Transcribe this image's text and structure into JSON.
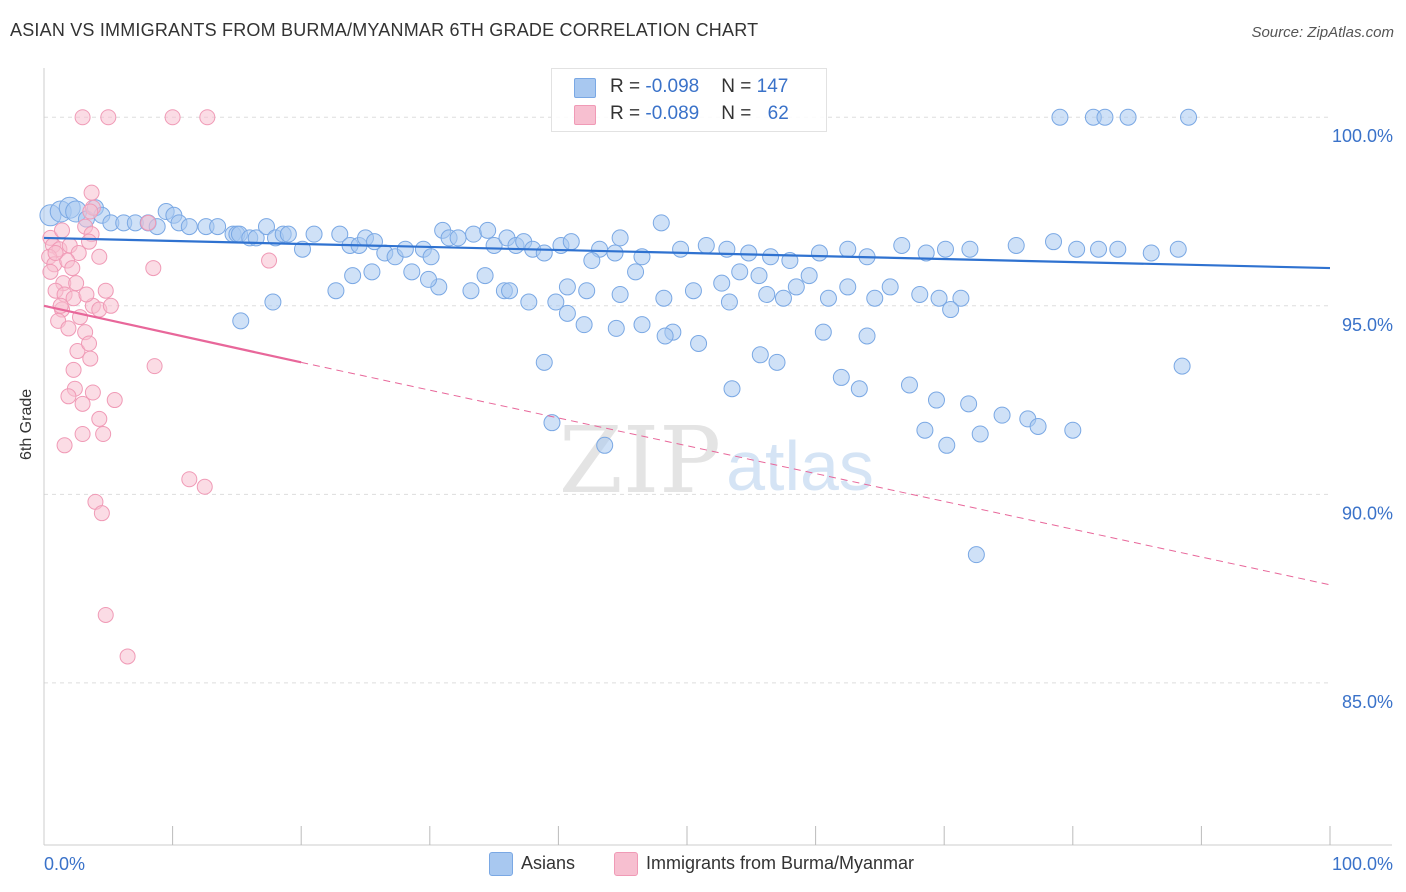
{
  "header": {
    "title": "ASIAN VS IMMIGRANTS FROM BURMA/MYANMAR 6TH GRADE CORRELATION CHART",
    "source": "Source: ZipAtlas.com"
  },
  "stats": [
    {
      "r_label": "R = ",
      "r_value": "-0.098",
      "n_label": "N = ",
      "n_value": "147",
      "color": "#a8c8f0"
    },
    {
      "r_label": "R = ",
      "r_value": "-0.089",
      "n_label": "N = ",
      "n_value": "62",
      "color": "#f7bfd0"
    }
  ],
  "legend": [
    {
      "label": "Asians",
      "color": "#a8c8f0"
    },
    {
      "label": "Immigrants from Burma/Myanmar",
      "color": "#f7bfd0"
    }
  ],
  "watermark": {
    "zip": "ZIP",
    "atlas": "atlas"
  },
  "chart_data": {
    "type": "scatter",
    "title": "ASIAN VS IMMIGRANTS FROM BURMA/MYANMAR 6TH GRADE CORRELATION CHART",
    "xlabel": "",
    "ylabel": "6th Grade",
    "xlim": [
      0,
      100
    ],
    "ylim": [
      80.7,
      101.2
    ],
    "x_tick_labels": [
      "0.0%",
      "100.0%"
    ],
    "y_ticks": [
      85,
      90,
      95,
      100
    ],
    "y_tick_labels": [
      "85.0%",
      "90.0%",
      "95.0%",
      "100.0%"
    ],
    "grid": true,
    "series": [
      {
        "name": "Asians",
        "color": "#7aa8e4",
        "fill": "#a8c8f0",
        "trend": {
          "x": [
            0,
            100
          ],
          "y": [
            96.8,
            96.0
          ],
          "style": "solid",
          "color": "#2f72d0"
        },
        "points": [
          [
            0.5,
            97.4
          ],
          [
            1.3,
            97.5
          ],
          [
            2.0,
            97.6
          ],
          [
            2.5,
            97.5
          ],
          [
            3.3,
            97.3
          ],
          [
            4.0,
            97.6
          ],
          [
            4.5,
            97.4
          ],
          [
            5.2,
            97.2
          ],
          [
            6.2,
            97.2
          ],
          [
            7.1,
            97.2
          ],
          [
            8.1,
            97.2
          ],
          [
            8.8,
            97.1
          ],
          [
            9.5,
            97.5
          ],
          [
            10.1,
            97.4
          ],
          [
            10.5,
            97.2
          ],
          [
            11.3,
            97.1
          ],
          [
            12.6,
            97.1
          ],
          [
            13.5,
            97.1
          ],
          [
            14.7,
            96.9
          ],
          [
            15.0,
            96.9
          ],
          [
            15.2,
            96.9
          ],
          [
            16.0,
            96.8
          ],
          [
            16.5,
            96.8
          ],
          [
            17.3,
            97.1
          ],
          [
            18.0,
            96.8
          ],
          [
            18.6,
            96.9
          ],
          [
            19.0,
            96.9
          ],
          [
            20.1,
            96.5
          ],
          [
            21.0,
            96.9
          ],
          [
            23.0,
            96.9
          ],
          [
            23.8,
            96.6
          ],
          [
            24.5,
            96.6
          ],
          [
            25.0,
            96.8
          ],
          [
            25.7,
            96.7
          ],
          [
            26.5,
            96.4
          ],
          [
            27.3,
            96.3
          ],
          [
            28.1,
            96.5
          ],
          [
            29.5,
            96.5
          ],
          [
            30.1,
            96.3
          ],
          [
            31.0,
            97.0
          ],
          [
            31.5,
            96.8
          ],
          [
            32.2,
            96.8
          ],
          [
            33.4,
            96.9
          ],
          [
            34.5,
            97.0
          ],
          [
            35.0,
            96.6
          ],
          [
            36.0,
            96.8
          ],
          [
            36.7,
            96.6
          ],
          [
            37.3,
            96.7
          ],
          [
            38.0,
            96.5
          ],
          [
            38.9,
            96.4
          ],
          [
            40.2,
            96.6
          ],
          [
            41.0,
            96.7
          ],
          [
            43.2,
            96.5
          ],
          [
            44.8,
            96.8
          ],
          [
            46.5,
            96.3
          ],
          [
            48.0,
            97.2
          ],
          [
            49.5,
            96.5
          ],
          [
            51.5,
            96.6
          ],
          [
            53.1,
            96.5
          ],
          [
            54.8,
            96.4
          ],
          [
            56.5,
            96.3
          ],
          [
            58.0,
            96.2
          ],
          [
            60.3,
            96.4
          ],
          [
            62.5,
            96.5
          ],
          [
            64.0,
            96.3
          ],
          [
            66.7,
            96.6
          ],
          [
            68.6,
            96.4
          ],
          [
            70.1,
            96.5
          ],
          [
            72.0,
            96.5
          ],
          [
            75.6,
            96.6
          ],
          [
            78.5,
            96.7
          ],
          [
            80.3,
            96.5
          ],
          [
            82.0,
            96.5
          ],
          [
            83.5,
            96.5
          ],
          [
            86.1,
            96.4
          ],
          [
            88.2,
            96.5
          ],
          [
            25.5,
            95.9
          ],
          [
            30.7,
            95.5
          ],
          [
            33.2,
            95.4
          ],
          [
            35.8,
            95.4
          ],
          [
            40.7,
            95.5
          ],
          [
            42.6,
            96.2
          ],
          [
            44.4,
            96.4
          ],
          [
            46.0,
            95.9
          ],
          [
            48.2,
            95.2
          ],
          [
            50.5,
            95.4
          ],
          [
            52.7,
            95.6
          ],
          [
            54.1,
            95.9
          ],
          [
            56.2,
            95.3
          ],
          [
            57.5,
            95.2
          ],
          [
            58.5,
            95.5
          ],
          [
            61.0,
            95.2
          ],
          [
            62.5,
            95.5
          ],
          [
            64.6,
            95.2
          ],
          [
            65.8,
            95.5
          ],
          [
            68.1,
            95.3
          ],
          [
            69.6,
            95.2
          ],
          [
            71.3,
            95.2
          ],
          [
            17.8,
            95.1
          ],
          [
            22.7,
            95.4
          ],
          [
            24.0,
            95.8
          ],
          [
            28.6,
            95.9
          ],
          [
            29.9,
            95.7
          ],
          [
            34.3,
            95.8
          ],
          [
            36.2,
            95.4
          ],
          [
            37.7,
            95.1
          ],
          [
            39.8,
            95.1
          ],
          [
            40.7,
            94.8
          ],
          [
            42.2,
            95.4
          ],
          [
            44.8,
            95.3
          ],
          [
            46.5,
            94.5
          ],
          [
            48.9,
            94.3
          ],
          [
            53.3,
            95.1
          ],
          [
            55.6,
            95.8
          ],
          [
            59.5,
            95.8
          ],
          [
            70.5,
            94.9
          ],
          [
            60.6,
            94.3
          ],
          [
            64.0,
            94.2
          ],
          [
            15.3,
            94.6
          ],
          [
            38.9,
            93.5
          ],
          [
            42.0,
            94.5
          ],
          [
            44.5,
            94.4
          ],
          [
            48.3,
            94.2
          ],
          [
            50.9,
            94.0
          ],
          [
            55.7,
            93.7
          ],
          [
            57.0,
            93.5
          ],
          [
            62.0,
            93.1
          ],
          [
            63.4,
            92.8
          ],
          [
            67.3,
            92.9
          ],
          [
            69.4,
            92.5
          ],
          [
            71.9,
            92.4
          ],
          [
            74.5,
            92.1
          ],
          [
            76.5,
            92.0
          ],
          [
            77.3,
            91.8
          ],
          [
            80.0,
            91.7
          ],
          [
            39.5,
            91.9
          ],
          [
            43.6,
            91.3
          ],
          [
            53.5,
            92.8
          ],
          [
            68.5,
            91.7
          ],
          [
            70.2,
            91.3
          ],
          [
            72.8,
            91.6
          ],
          [
            72.5,
            88.4
          ],
          [
            79.0,
            100.0
          ],
          [
            81.6,
            100.0
          ],
          [
            82.5,
            100.0
          ],
          [
            84.3,
            100.0
          ],
          [
            89.0,
            100.0
          ],
          [
            88.5,
            93.4
          ]
        ]
      },
      {
        "name": "Immigrants from Burma/Myanmar",
        "color": "#f09ab6",
        "fill": "#f7bfd0",
        "trend": {
          "x": [
            0,
            20
          ],
          "y": [
            95.0,
            93.5
          ],
          "style": "solid",
          "color": "#e8679a",
          "extension": {
            "x": [
              20,
              100
            ],
            "y": [
              93.5,
              87.6
            ],
            "style": "dashed"
          }
        },
        "points": [
          [
            3.0,
            100.0
          ],
          [
            5.0,
            100.0
          ],
          [
            10.0,
            100.0
          ],
          [
            12.7,
            100.0
          ],
          [
            3.7,
            98.0
          ],
          [
            3.8,
            97.6
          ],
          [
            3.6,
            97.5
          ],
          [
            3.2,
            97.1
          ],
          [
            3.7,
            96.9
          ],
          [
            3.5,
            96.7
          ],
          [
            0.5,
            96.8
          ],
          [
            0.7,
            96.6
          ],
          [
            1.2,
            96.5
          ],
          [
            2.0,
            96.6
          ],
          [
            0.4,
            96.3
          ],
          [
            0.8,
            96.1
          ],
          [
            0.5,
            95.9
          ],
          [
            1.5,
            95.6
          ],
          [
            4.3,
            96.3
          ],
          [
            8.1,
            97.2
          ],
          [
            8.5,
            96.0
          ],
          [
            17.5,
            96.2
          ],
          [
            0.9,
            95.4
          ],
          [
            1.6,
            95.3
          ],
          [
            2.3,
            95.2
          ],
          [
            1.4,
            94.9
          ],
          [
            3.8,
            95.0
          ],
          [
            4.3,
            94.9
          ],
          [
            5.2,
            95.0
          ],
          [
            2.8,
            94.7
          ],
          [
            1.1,
            94.6
          ],
          [
            1.9,
            94.4
          ],
          [
            3.2,
            94.3
          ],
          [
            2.6,
            93.8
          ],
          [
            3.6,
            93.6
          ],
          [
            2.3,
            93.3
          ],
          [
            8.6,
            93.4
          ],
          [
            2.4,
            92.8
          ],
          [
            3.8,
            92.7
          ],
          [
            1.9,
            92.6
          ],
          [
            3.0,
            92.4
          ],
          [
            5.5,
            92.5
          ],
          [
            4.3,
            92.0
          ],
          [
            3.0,
            91.6
          ],
          [
            1.6,
            91.3
          ],
          [
            4.6,
            91.6
          ],
          [
            11.3,
            90.4
          ],
          [
            12.5,
            90.2
          ],
          [
            4.0,
            89.8
          ],
          [
            4.5,
            89.5
          ],
          [
            4.8,
            86.8
          ],
          [
            6.5,
            85.7
          ],
          [
            2.7,
            96.4
          ],
          [
            1.8,
            96.2
          ],
          [
            4.8,
            95.4
          ],
          [
            3.3,
            95.3
          ],
          [
            2.2,
            96.0
          ],
          [
            1.4,
            97.0
          ],
          [
            2.5,
            95.6
          ],
          [
            0.9,
            96.4
          ],
          [
            1.3,
            95.0
          ],
          [
            3.5,
            94.0
          ]
        ]
      }
    ]
  }
}
